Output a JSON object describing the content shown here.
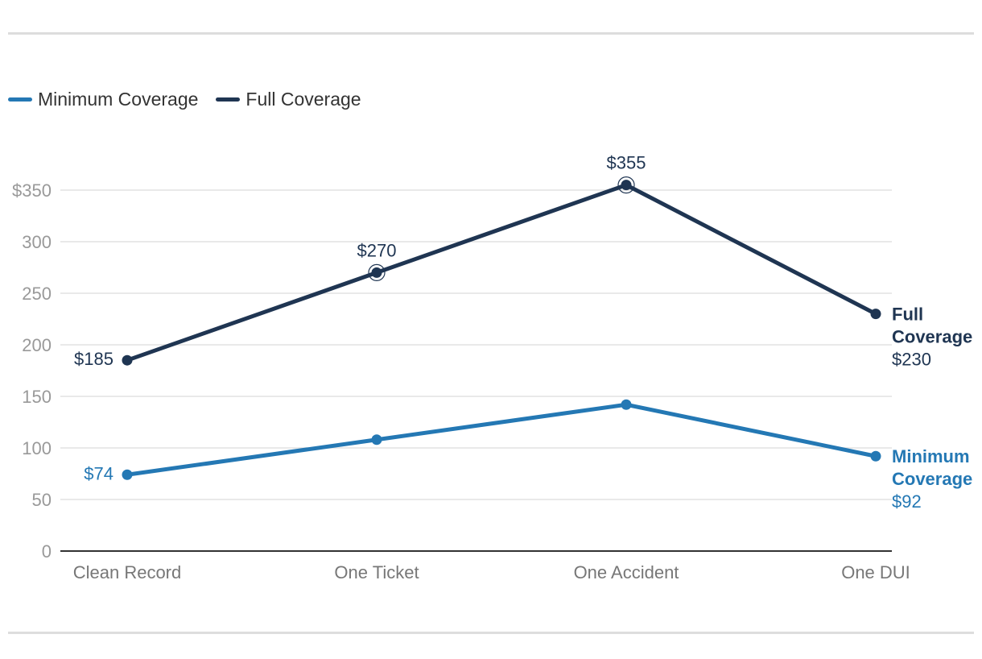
{
  "chart_data": {
    "type": "line",
    "categories": [
      "Clean Record",
      "One Ticket",
      "One Accident",
      "One DUI"
    ],
    "series": [
      {
        "name": "Minimum Coverage",
        "values": [
          74,
          108,
          142,
          92
        ],
        "color": "#2478b4",
        "point_labels": [
          "$74",
          null,
          null,
          null
        ],
        "end_label": [
          "Minimum",
          "Coverage"
        ],
        "end_value": "$92"
      },
      {
        "name": "Full Coverage",
        "values": [
          185,
          270,
          355,
          230
        ],
        "color": "#1f3552",
        "point_labels": [
          "$185",
          "$270",
          "$355",
          null
        ],
        "end_label": [
          "Full",
          "Coverage"
        ],
        "end_value": "$230"
      }
    ],
    "y_ticks": [
      {
        "value": 0,
        "label": "0"
      },
      {
        "value": 50,
        "label": "50"
      },
      {
        "value": 100,
        "label": "100"
      },
      {
        "value": 150,
        "label": "150"
      },
      {
        "value": 200,
        "label": "200"
      },
      {
        "value": 250,
        "label": "250"
      },
      {
        "value": 300,
        "label": "300"
      },
      {
        "value": 350,
        "label": "$350"
      }
    ],
    "ylim": [
      0,
      350
    ],
    "grid": true,
    "legend_position": "top-left",
    "title": "",
    "xlabel": "",
    "ylabel": ""
  }
}
